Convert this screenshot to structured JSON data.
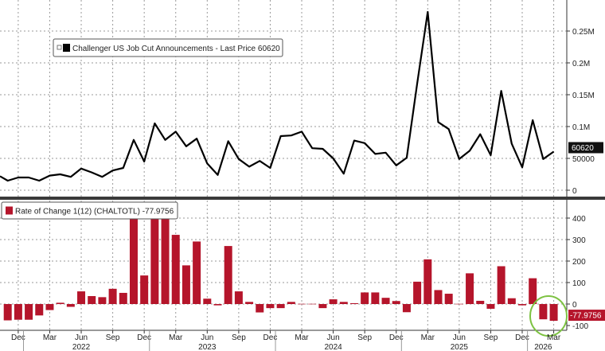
{
  "chart_data": [
    {
      "type": "line",
      "legend": "Challenger US Job Cut Announcements - Last Price 60620",
      "legend_placement": "top-left",
      "last_value_label": "60620",
      "color": "#000000",
      "grid": true,
      "ylim": [
        0,
        290000
      ],
      "yticks": [
        0,
        50000,
        100000,
        150000,
        200000,
        250000
      ],
      "ytick_labels": [
        "0",
        "50000",
        "0.1M",
        "0.15M",
        "0.2M",
        "0.25M"
      ],
      "x": [
        "2021-11",
        "2021-12",
        "2022-01",
        "2022-02",
        "2022-03",
        "2022-04",
        "2022-05",
        "2022-06",
        "2022-07",
        "2022-08",
        "2022-09",
        "2022-10",
        "2022-11",
        "2022-12",
        "2023-01",
        "2023-02",
        "2023-03",
        "2023-04",
        "2023-05",
        "2023-06",
        "2023-07",
        "2023-08",
        "2023-09",
        "2023-10",
        "2023-11",
        "2023-12",
        "2024-01",
        "2024-02",
        "2024-03",
        "2024-04",
        "2024-05",
        "2024-06",
        "2024-07",
        "2024-08",
        "2024-09",
        "2024-10",
        "2024-11",
        "2024-12",
        "2025-01",
        "2025-02",
        "2025-03",
        "2025-04",
        "2025-05",
        "2025-06",
        "2025-07",
        "2025-08",
        "2025-09",
        "2025-10",
        "2025-11",
        "2025-12",
        "2026-01",
        "2026-02",
        "2026-03"
      ],
      "values": [
        15000,
        20000,
        20000,
        15000,
        23000,
        25000,
        21000,
        34000,
        28000,
        21000,
        31000,
        35000,
        79000,
        45000,
        105000,
        79000,
        92000,
        69000,
        81000,
        42000,
        24000,
        77000,
        49000,
        37000,
        46000,
        35000,
        85000,
        86000,
        92000,
        66000,
        65000,
        50000,
        26000,
        78000,
        74000,
        57000,
        59000,
        39000,
        51000,
        168000,
        280000,
        107000,
        96000,
        49000,
        62000,
        88000,
        55000,
        156000,
        73000,
        36000,
        110000,
        49000,
        60620
      ]
    },
    {
      "type": "bar",
      "legend": "Rate of Change 1(12) (CHALTOTL) -77.9756",
      "legend_placement": "top-left",
      "last_value_label": "-77.9756",
      "color": "#b5152b",
      "highlight": "green circle around last two bars",
      "highlight_color": "#7dc242",
      "grid": true,
      "ylim": [
        -100,
        480
      ],
      "yticks": [
        -100,
        0,
        100,
        200,
        300,
        400
      ],
      "ytick_labels": [
        "-100",
        "0",
        "100",
        "200",
        "300",
        "400"
      ],
      "values": [
        -76,
        -73,
        -73,
        -53,
        -28,
        6,
        -13,
        59,
        37,
        32,
        71,
        52,
        417,
        133,
        425,
        410,
        322,
        180,
        291,
        25,
        -6,
        270,
        59,
        10,
        -39,
        -19,
        -19,
        10,
        1,
        1,
        -19,
        22,
        10,
        4,
        54,
        54,
        29,
        14,
        -38,
        104,
        208,
        65,
        48,
        1,
        143,
        15,
        -22,
        176,
        27,
        -6,
        120,
        -71,
        -77.9756
      ]
    }
  ],
  "xaxis": {
    "month_ticks": [
      {
        "label": "Dec",
        "month": "2021-12"
      },
      {
        "label": "Mar",
        "month": "2022-03"
      },
      {
        "label": "Jun",
        "month": "2022-06"
      },
      {
        "label": "Sep",
        "month": "2022-09"
      },
      {
        "label": "Dec",
        "month": "2022-12"
      },
      {
        "label": "Mar",
        "month": "2023-03"
      },
      {
        "label": "Jun",
        "month": "2023-06"
      },
      {
        "label": "Sep",
        "month": "2023-09"
      },
      {
        "label": "Dec",
        "month": "2023-12"
      },
      {
        "label": "Mar",
        "month": "2024-03"
      },
      {
        "label": "Jun",
        "month": "2024-06"
      },
      {
        "label": "Sep",
        "month": "2024-09"
      },
      {
        "label": "Dec",
        "month": "2024-12"
      },
      {
        "label": "Mar",
        "month": "2025-03"
      },
      {
        "label": "Jun",
        "month": "2025-06"
      },
      {
        "label": "Sep",
        "month": "2025-09"
      },
      {
        "label": "Dec",
        "month": "2025-12"
      },
      {
        "label": "Mar",
        "month": "2026-03"
      }
    ],
    "year_labels": [
      {
        "label": "2022",
        "month": "2022-06"
      },
      {
        "label": "2023",
        "month": "2023-06"
      },
      {
        "label": "2024",
        "month": "2024-06"
      },
      {
        "label": "2025",
        "month": "2025-06"
      },
      {
        "label": "2026",
        "month": "2026-02"
      }
    ]
  }
}
